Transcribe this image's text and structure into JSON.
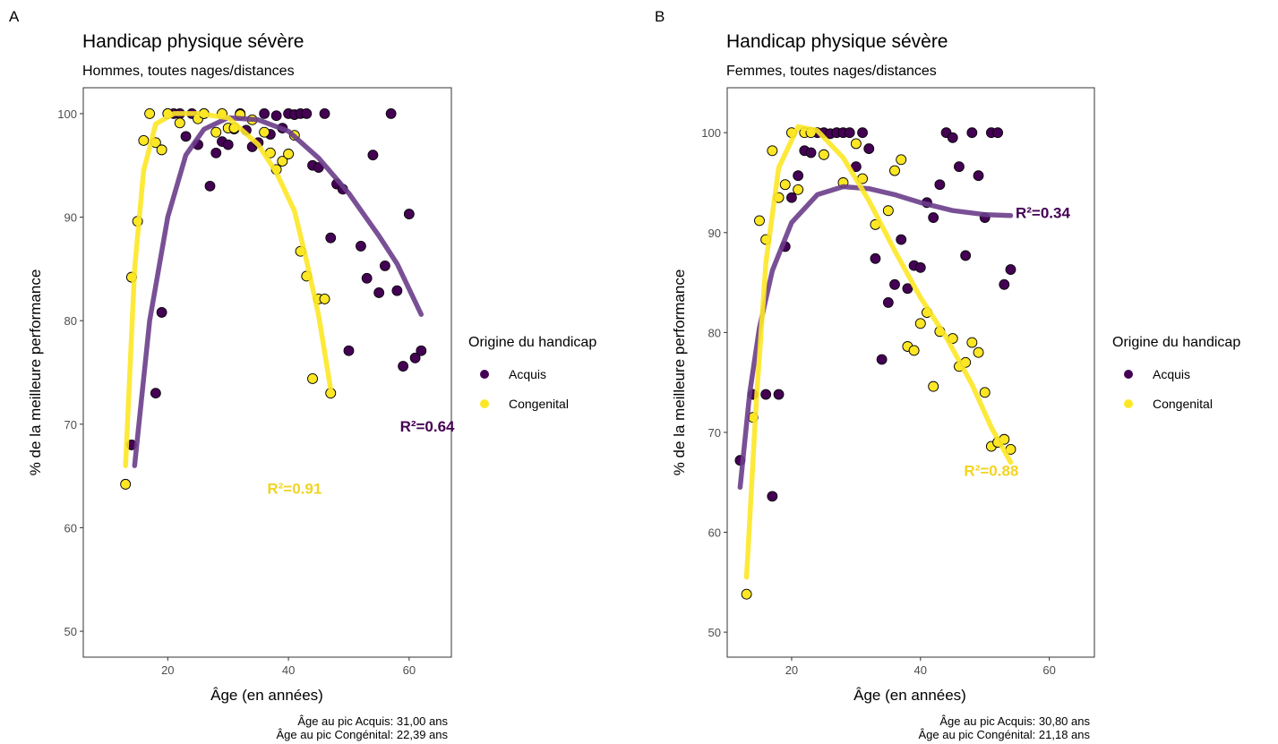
{
  "legend": {
    "title": "Origine du handicap",
    "entries": [
      {
        "label": "Acquis",
        "color": "#440154"
      },
      {
        "label": "Congenital",
        "color": "#FDE725"
      }
    ]
  },
  "colors": {
    "acquis": "#440154",
    "congenital": "#FDE725",
    "acquis_line": "#6A3D8A",
    "congenital_line": "#FDE725"
  },
  "chart_data": [
    {
      "type": "scatter",
      "panel_label": "A",
      "title": "Handicap physique sévère",
      "subtitle": "Hommes, toutes nages/distances",
      "xlabel": "Âge (en années)",
      "ylabel": "% de la meilleure performance",
      "xlim": [
        6,
        67
      ],
      "ylim": [
        47.5,
        102.5
      ],
      "xticks": [
        20,
        40,
        60
      ],
      "yticks": [
        50,
        60,
        70,
        80,
        90,
        100
      ],
      "grid": false,
      "legend_position": "right",
      "r2": [
        {
          "series": "Acquis",
          "text": "R²=0.64",
          "x": 63,
          "y": 69.8
        },
        {
          "series": "Congenital",
          "text": "R²=0.91",
          "x": 41,
          "y": 63.8
        }
      ],
      "caption": [
        "Âge au pic Acquis: 31,00 ans",
        "Âge au pic Congénital: 22,39 ans"
      ],
      "series": [
        {
          "name": "Acquis",
          "points": [
            [
              14,
              68
            ],
            [
              18,
              73
            ],
            [
              19,
              80.8
            ],
            [
              20,
              100
            ],
            [
              21,
              100
            ],
            [
              22,
              100
            ],
            [
              23,
              97.8
            ],
            [
              24,
              100
            ],
            [
              25,
              97
            ],
            [
              26,
              100
            ],
            [
              27,
              93
            ],
            [
              28,
              96.2
            ],
            [
              29,
              97.3
            ],
            [
              30,
              97
            ],
            [
              31,
              98.5
            ],
            [
              32,
              100
            ],
            [
              33,
              98.4
            ],
            [
              34,
              96.8
            ],
            [
              35,
              97.2
            ],
            [
              36,
              100
            ],
            [
              37,
              98
            ],
            [
              38,
              99.8
            ],
            [
              39,
              98.6
            ],
            [
              40,
              100
            ],
            [
              41,
              99.9
            ],
            [
              42,
              100
            ],
            [
              43,
              100
            ],
            [
              44,
              95
            ],
            [
              45,
              94.8
            ],
            [
              46,
              100
            ],
            [
              47,
              88
            ],
            [
              48,
              93.2
            ],
            [
              49,
              92.7
            ],
            [
              50,
              77.1
            ],
            [
              52,
              87.2
            ],
            [
              53,
              84.1
            ],
            [
              54,
              96
            ],
            [
              55,
              82.7
            ],
            [
              56,
              85.3
            ],
            [
              57,
              100
            ],
            [
              58,
              82.9
            ],
            [
              59,
              75.6
            ],
            [
              60,
              90.3
            ],
            [
              61,
              76.4
            ],
            [
              62,
              77.1
            ]
          ],
          "trend": [
            [
              14.5,
              66
            ],
            [
              17,
              80
            ],
            [
              20,
              90
            ],
            [
              23,
              96
            ],
            [
              26,
              98.5
            ],
            [
              30,
              99.6
            ],
            [
              35,
              99.4
            ],
            [
              40,
              98.3
            ],
            [
              45,
              95.7
            ],
            [
              50,
              92.3
            ],
            [
              55,
              88.2
            ],
            [
              58,
              85.5
            ],
            [
              62,
              80.6
            ]
          ]
        },
        {
          "name": "Congenital",
          "points": [
            [
              13,
              64.2
            ],
            [
              14,
              84.2
            ],
            [
              15,
              89.6
            ],
            [
              16,
              97.4
            ],
            [
              17,
              100
            ],
            [
              18,
              97.2
            ],
            [
              19,
              96.5
            ],
            [
              20,
              100
            ],
            [
              22,
              99.1
            ],
            [
              25,
              99.5
            ],
            [
              26,
              100
            ],
            [
              28,
              98.2
            ],
            [
              29,
              100
            ],
            [
              30,
              98.6
            ],
            [
              31,
              98.6
            ],
            [
              32,
              99.9
            ],
            [
              34,
              99.4
            ],
            [
              36,
              98.2
            ],
            [
              37,
              96.2
            ],
            [
              38,
              94.6
            ],
            [
              39,
              95.4
            ],
            [
              40,
              96.1
            ],
            [
              41,
              97.9
            ],
            [
              42,
              86.7
            ],
            [
              43,
              84.3
            ],
            [
              44,
              74.4
            ],
            [
              45,
              82.1
            ],
            [
              46,
              82.1
            ],
            [
              47,
              73
            ]
          ],
          "trend": [
            [
              13,
              66
            ],
            [
              14.5,
              85
            ],
            [
              16,
              94.5
            ],
            [
              18,
              99
            ],
            [
              21,
              100
            ],
            [
              25,
              100
            ],
            [
              30,
              99.6
            ],
            [
              35,
              97
            ],
            [
              38,
              94.3
            ],
            [
              41,
              90.6
            ],
            [
              43,
              85.8
            ],
            [
              45,
              80.5
            ],
            [
              47,
              73.4
            ]
          ]
        }
      ]
    },
    {
      "type": "scatter",
      "panel_label": "B",
      "title": "Handicap physique sévère",
      "subtitle": "Femmes, toutes nages/distances",
      "xlabel": "Âge (en années)",
      "ylabel": "% de la meilleure performance",
      "xlim": [
        10,
        67
      ],
      "ylim": [
        47.5,
        104.5
      ],
      "xticks": [
        20,
        40,
        60
      ],
      "yticks": [
        50,
        60,
        70,
        80,
        90,
        100
      ],
      "grid": false,
      "legend_position": "right",
      "r2": [
        {
          "series": "Acquis",
          "text": "R²=0.34",
          "x": 59,
          "y": 92
        },
        {
          "series": "Congenital",
          "text": "R²=0.88",
          "x": 51,
          "y": 66.2
        }
      ],
      "caption": [
        "Âge au pic Acquis: 30,80 ans",
        "Âge au pic Congénital: 21,18 ans"
      ],
      "series": [
        {
          "name": "Acquis",
          "points": [
            [
              12,
              67.2
            ],
            [
              14,
              73.8
            ],
            [
              16,
              73.8
            ],
            [
              17,
              63.6
            ],
            [
              18,
              73.8
            ],
            [
              19,
              88.6
            ],
            [
              20,
              93.5
            ],
            [
              21,
              95.7
            ],
            [
              22,
              98.2
            ],
            [
              23,
              98
            ],
            [
              24,
              100
            ],
            [
              25,
              100
            ],
            [
              26,
              99.9
            ],
            [
              27,
              100
            ],
            [
              28,
              100
            ],
            [
              29,
              100
            ],
            [
              30,
              96.6
            ],
            [
              31,
              100
            ],
            [
              32,
              98.4
            ],
            [
              33,
              87.4
            ],
            [
              34,
              77.3
            ],
            [
              35,
              83
            ],
            [
              36,
              84.8
            ],
            [
              37,
              89.3
            ],
            [
              38,
              84.4
            ],
            [
              39,
              86.7
            ],
            [
              40,
              86.5
            ],
            [
              41,
              93
            ],
            [
              42,
              91.5
            ],
            [
              43,
              94.8
            ],
            [
              44,
              100
            ],
            [
              45,
              99.5
            ],
            [
              46,
              96.6
            ],
            [
              47,
              87.7
            ],
            [
              48,
              100
            ],
            [
              49,
              95.7
            ],
            [
              50,
              91.5
            ],
            [
              51,
              100
            ],
            [
              52,
              100
            ],
            [
              53,
              84.8
            ],
            [
              54,
              86.3
            ]
          ],
          "trend": [
            [
              12,
              64.5
            ],
            [
              13.5,
              74
            ],
            [
              15,
              80.5
            ],
            [
              17,
              86.2
            ],
            [
              20,
              91
            ],
            [
              24,
              93.8
            ],
            [
              28,
              94.6
            ],
            [
              32,
              94.4
            ],
            [
              36,
              93.8
            ],
            [
              40,
              93
            ],
            [
              45,
              92.2
            ],
            [
              50,
              91.8
            ],
            [
              54,
              91.7
            ]
          ]
        },
        {
          "name": "Congenital",
          "points": [
            [
              13,
              53.8
            ],
            [
              14,
              71.5
            ],
            [
              15,
              91.2
            ],
            [
              16,
              89.3
            ],
            [
              17,
              98.2
            ],
            [
              18,
              93.5
            ],
            [
              19,
              94.8
            ],
            [
              20,
              100
            ],
            [
              21,
              94.3
            ],
            [
              22,
              100
            ],
            [
              23,
              100
            ],
            [
              25,
              97.8
            ],
            [
              28,
              95
            ],
            [
              30,
              98.9
            ],
            [
              31,
              95.4
            ],
            [
              33,
              90.8
            ],
            [
              35,
              92.2
            ],
            [
              36,
              96.2
            ],
            [
              37,
              97.3
            ],
            [
              38,
              78.6
            ],
            [
              39,
              78.2
            ],
            [
              40,
              80.9
            ],
            [
              41,
              82
            ],
            [
              42,
              74.6
            ],
            [
              43,
              80.1
            ],
            [
              45,
              79.4
            ],
            [
              46,
              76.6
            ],
            [
              47,
              77
            ],
            [
              48,
              79
            ],
            [
              49,
              78
            ],
            [
              50,
              74
            ],
            [
              51,
              68.6
            ],
            [
              52,
              69
            ],
            [
              53,
              69.3
            ],
            [
              54,
              68.3
            ]
          ],
          "trend": [
            [
              13,
              55.5
            ],
            [
              14.5,
              73
            ],
            [
              16,
              87
            ],
            [
              18,
              96.5
            ],
            [
              21,
              100.6
            ],
            [
              24,
              100.2
            ],
            [
              28,
              97.5
            ],
            [
              32,
              93.2
            ],
            [
              36,
              88.2
            ],
            [
              40,
              83.5
            ],
            [
              44,
              79.5
            ],
            [
              48,
              74.8
            ],
            [
              51,
              70.5
            ],
            [
              54,
              67
            ]
          ]
        }
      ]
    }
  ]
}
